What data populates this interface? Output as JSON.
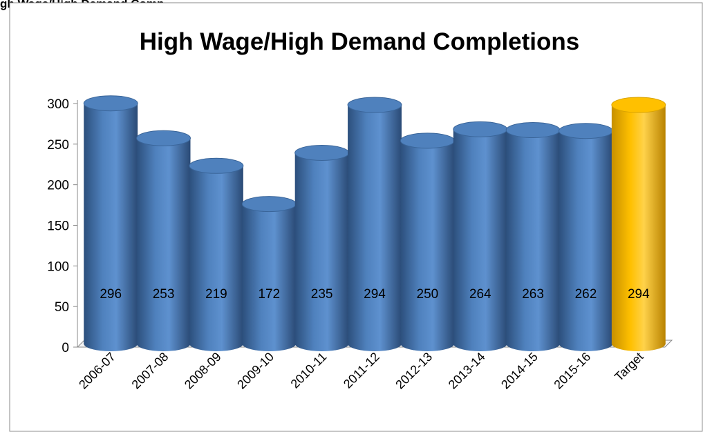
{
  "caption": "gh Wage/High Demand Comp",
  "chart_data": {
    "type": "bar",
    "title": "High Wage/High Demand Completions",
    "categories": [
      "2006-07",
      "2007-08",
      "2008-09",
      "2009-10",
      "2010-11",
      "2011-12",
      "2012-13",
      "2013-14",
      "2014-15",
      "2015-16",
      "Target"
    ],
    "values": [
      296,
      253,
      219,
      172,
      235,
      294,
      250,
      264,
      263,
      262,
      294
    ],
    "colors": [
      "#4f81bd",
      "#4f81bd",
      "#4f81bd",
      "#4f81bd",
      "#4f81bd",
      "#4f81bd",
      "#4f81bd",
      "#4f81bd",
      "#4f81bd",
      "#4f81bd",
      "#ffc000"
    ],
    "ylim": [
      0,
      300
    ],
    "yticks": [
      0,
      50,
      100,
      150,
      200,
      250,
      300
    ],
    "grid": false
  }
}
